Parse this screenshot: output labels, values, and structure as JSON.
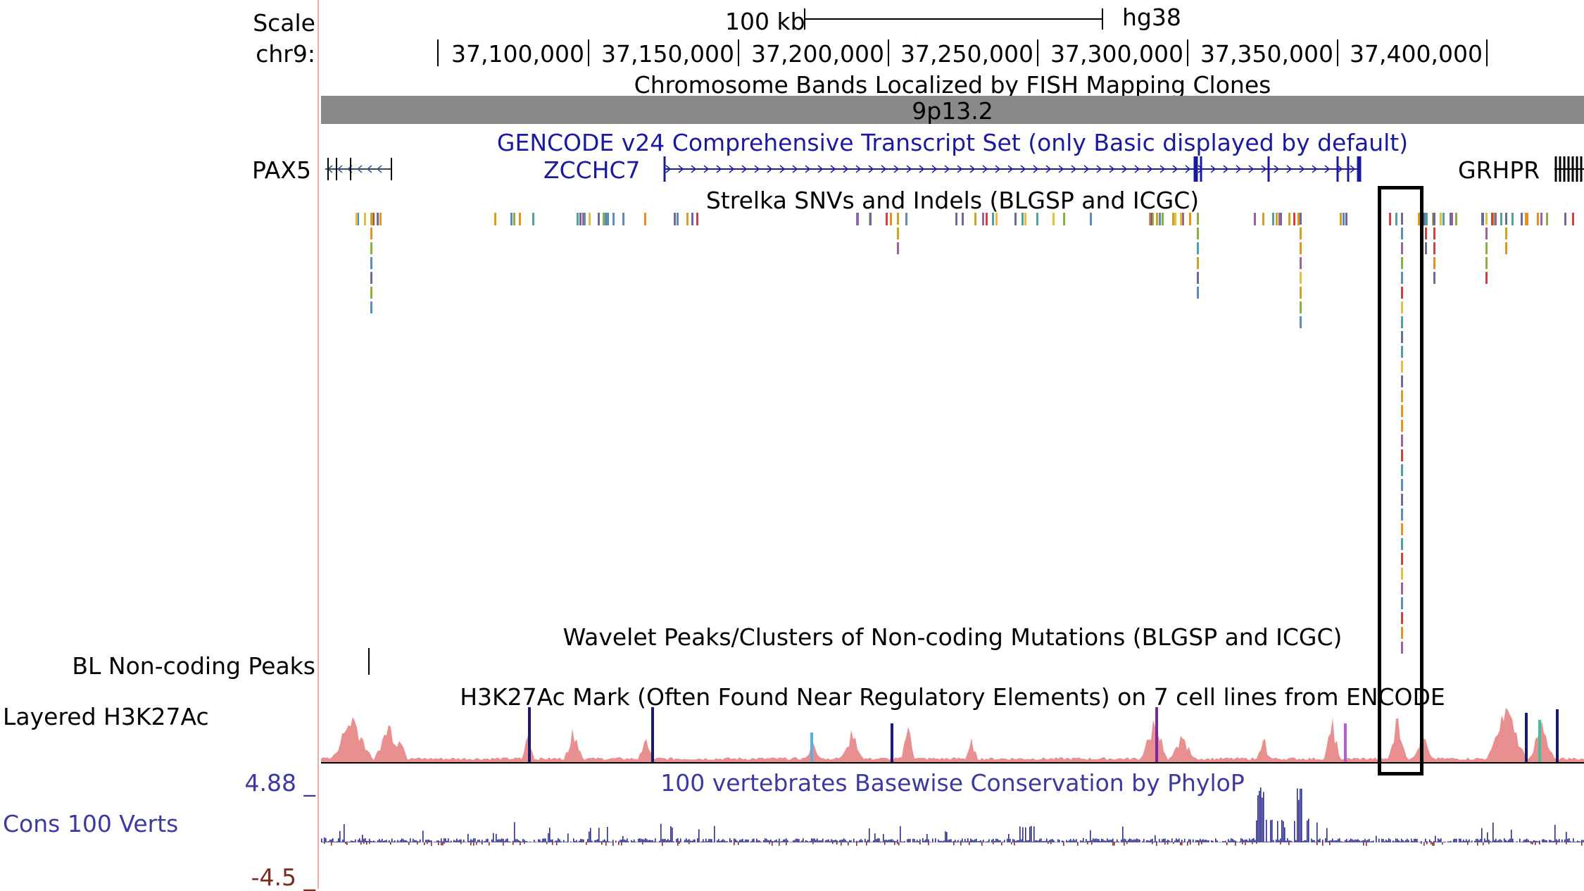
{
  "left_labels": {
    "scale": "Scale",
    "chrom": "chr9:",
    "bl_peaks": "BL Non-coding Peaks",
    "h3k27ac": "Layered H3K27Ac",
    "cons_max": "4.88 _",
    "cons": "Cons 100 Verts",
    "cons_min": "-4.5 _"
  },
  "ruler": {
    "scale_text": "100 kb",
    "assembly": "hg38",
    "ticks": [
      "37,100,000",
      "37,150,000",
      "37,200,000",
      "37,250,000",
      "37,300,000",
      "37,350,000",
      "37,400,000"
    ]
  },
  "tracks": {
    "bands_title": "Chromosome Bands Localized by FISH Mapping Clones",
    "band_name": "9p13.2",
    "gencode_title": "GENCODE v24 Comprehensive Transcript Set (only Basic displayed by default)",
    "genes": [
      "PAX5",
      "ZCCHC7",
      "GRHPR"
    ],
    "strelka_title": "Strelka SNVs and Indels (BLGSP and ICGC)",
    "wavelet_title": "Wavelet Peaks/Clusters of Non-coding Mutations (BLGSP and ICGC)",
    "h3k27ac_title": "H3K27Ac Mark (Often Found Near Regulatory Elements) on 7 cell lines from ENCODE",
    "phylop_title": "100 vertebrates Basewise Conservation by PhyloP"
  },
  "colors": {
    "gene": "#1a1aa0",
    "band": "#8a8a8a",
    "h3k27ac_main": "#e06a6a",
    "phylop_pos": "#2a2a8a",
    "phylop_neg": "#8a2a2a",
    "snv_palette": [
      "#d4a020",
      "#e89020",
      "#5a8cc0",
      "#6a6a9a",
      "#8cb040",
      "#d04040",
      "#a060a0",
      "#e0c040",
      "#50a0a0"
    ]
  }
}
